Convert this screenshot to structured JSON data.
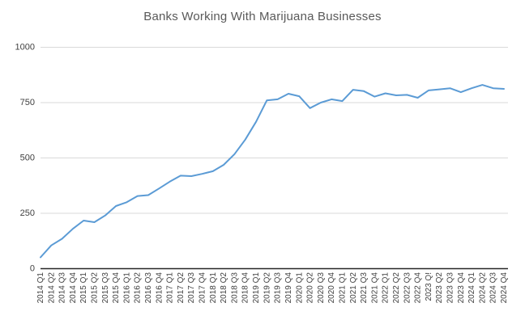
{
  "chart_data": {
    "type": "line",
    "title": "Banks Working With Marijuana Businesses",
    "categories": [
      "2014 Q1",
      "2014 Q2",
      "2014 Q3",
      "2014 Q4",
      "2015 Q1",
      "2015 Q2",
      "2015 Q3",
      "2015 Q4",
      "2016 Q1",
      "2016 Q2",
      "2016 Q3",
      "2016 Q4",
      "2017 Q1",
      "2017 Q2",
      "2017 Q3",
      "2017 Q4",
      "2018 Q1",
      "2018 Q2",
      "2018 Q3",
      "2018 Q4",
      "2019 Q1",
      "2019 Q2",
      "2019 Q3",
      "2019 Q4",
      "2020 Q1",
      "2020 Q2",
      "2020 Q3",
      "2020 Q4",
      "2021 Q1",
      "2021 Q2",
      "2021 Q3",
      "2021 Q4",
      "2022 Q1",
      "2022 Q2",
      "2022 Q3",
      "2022 Q4",
      "2023 Q!",
      "2023 Q2",
      "2023 Q3",
      "2023 Q4",
      "2024 Q1",
      "2024 Q2",
      "2024 Q3",
      "2024 Q4"
    ],
    "values": [
      51,
      105,
      135,
      180,
      217,
      210,
      240,
      283,
      300,
      328,
      332,
      362,
      393,
      420,
      418,
      428,
      440,
      469,
      517,
      583,
      663,
      760,
      765,
      790,
      779,
      725,
      750,
      765,
      757,
      808,
      802,
      777,
      792,
      783,
      785,
      772,
      805,
      810,
      815,
      797,
      815,
      830,
      815,
      812
    ],
    "xlabel": "",
    "ylabel": "",
    "ylim": [
      0,
      1000
    ],
    "yticks": [
      0,
      250,
      500,
      750,
      1000
    ],
    "grid": "horizontal",
    "legend": "none"
  },
  "colors": {
    "line": "#5B9BD5",
    "gridline": "#D9D9D9",
    "axis_line": "#262626",
    "title": "#595959",
    "tick_label": "#404040",
    "background": "#FFFFFF"
  }
}
